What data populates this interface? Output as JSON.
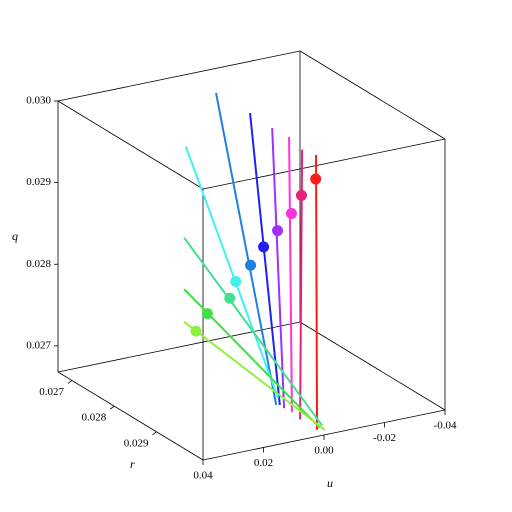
{
  "chart_data": {
    "type": "line3d",
    "x_label": "r",
    "y_label": "u",
    "z_label": "q",
    "rlim": [
      0.02667,
      0.0301
    ],
    "ulim": [
      -0.04,
      0.04
    ],
    "qlim": [
      0.02668,
      0.03
    ],
    "rticks": [
      0.027,
      0.028,
      0.029
    ],
    "uticks": [
      0.04,
      0.02,
      {
        "value": 0,
        "label": "0.00"
      },
      -0.02,
      -0.04
    ],
    "qticks": [
      0.027,
      0.028,
      0.029,
      {
        "value": 0.03,
        "label": "0.030"
      }
    ],
    "series": [
      {
        "color": "#ff1a1a",
        "r": [
          0.0277,
          0.0301
        ],
        "q": [
          0.02912,
          0.02676
        ],
        "u": [
          -0.0309,
          0.0023
        ],
        "point": {
          "r": 0.0279,
          "q": 0.02891,
          "u": -0.028
        }
      },
      {
        "color": "#e8207a",
        "r": [
          0.0277,
          0.0301
        ],
        "q": [
          0.02922,
          0.02693
        ],
        "u": [
          -0.0263,
          0.0079
        ],
        "point": {
          "r": 0.0281,
          "q": 0.02883,
          "u": -0.0205
        }
      },
      {
        "color": "#ff30e0",
        "r": [
          0.0277,
          0.0301
        ],
        "q": [
          0.02941,
          0.02704
        ],
        "u": [
          -0.022,
          0.0106
        ],
        "point": {
          "r": 0.0284,
          "q": 0.02876,
          "u": -0.013
        }
      },
      {
        "color": "#a030ff",
        "r": [
          0.0277,
          0.0301
        ],
        "q": [
          0.02956,
          0.02711
        ],
        "u": [
          -0.0164,
          0.0132
        ],
        "point": {
          "r": 0.0286,
          "q": 0.02867,
          "u": -0.0056
        }
      },
      {
        "color": "#2020f0",
        "r": [
          0.0277,
          0.0301
        ],
        "q": [
          0.0298,
          0.02716
        ],
        "u": [
          -0.0091,
          0.0146
        ],
        "point": {
          "r": 0.0288,
          "q": 0.02859,
          "u": 0.0018
        }
      },
      {
        "color": "#2080e0",
        "r": [
          0.02736,
          0.0301
        ],
        "q": [
          0.02999,
          0.02717
        ],
        "u": [
          -0.0026,
          0.0158
        ],
        "point": {
          "r": 0.0289,
          "q": 0.02844,
          "u": 0.0075
        }
      },
      {
        "color": "#40f0f0",
        "r": [
          0.0277,
          0.0301
        ],
        "q": [
          0.02955,
          0.02725
        ],
        "u": [
          0.0121,
          0.0152
        ],
        "point": {
          "r": 0.029,
          "q": 0.02832,
          "u": 0.0138
        }
      },
      {
        "color": "#40e090",
        "r": [
          0.0277,
          0.0301
        ],
        "q": [
          0.02844,
          0.0268
        ],
        "u": [
          0.0127,
          0.0006
        ],
        "point": {
          "r": 0.0285,
          "q": 0.02792,
          "u": 0.0088
        }
      },
      {
        "color": "#40e040",
        "r": [
          0.0277,
          0.0301
        ],
        "q": [
          0.02781,
          0.02678
        ],
        "u": [
          0.0127,
          0.0014
        ],
        "point": {
          "r": 0.0281,
          "q": 0.02762,
          "u": 0.0106
        }
      },
      {
        "color": "#90f040",
        "r": [
          0.0277,
          0.0301
        ],
        "q": [
          0.02741,
          0.02674
        ],
        "u": [
          0.0127,
          -0.0003
        ],
        "point": {
          "r": 0.0279,
          "q": 0.02735,
          "u": 0.0116
        }
      }
    ]
  }
}
